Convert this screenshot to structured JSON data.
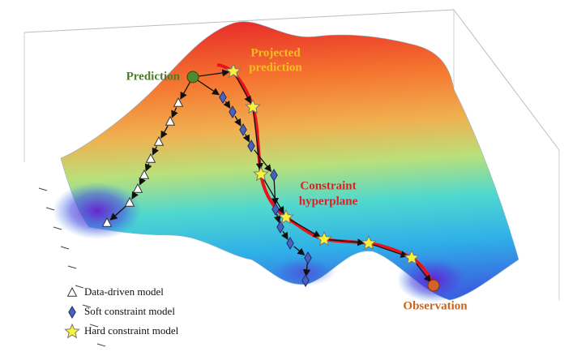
{
  "labels": {
    "prediction": "Prediction",
    "projected_prediction": [
      "Projected",
      "prediction"
    ],
    "constraint_hyperplane": [
      "Constraint",
      "hyperplane"
    ],
    "observation": "Observation"
  },
  "legend": [
    "Data-driven model",
    "Soft constraint model",
    "Hard constraint model"
  ]
}
